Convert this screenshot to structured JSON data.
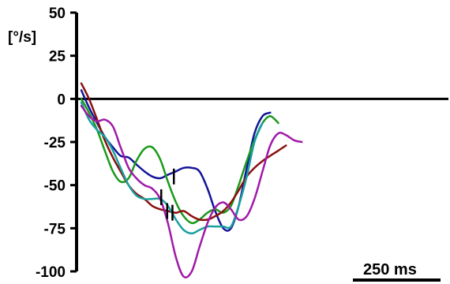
{
  "chart_data": {
    "type": "line",
    "title": "",
    "xlabel": "",
    "ylabel": "[°/s]",
    "ylim": [
      -100,
      50
    ],
    "yticks": [
      50,
      25,
      0,
      -25,
      -50,
      -75,
      -100
    ],
    "ytick_labels": [
      "50",
      "25",
      "0",
      "-25",
      "-50",
      "-75",
      "-100"
    ],
    "scale_bar": {
      "label": "250 ms",
      "duration_ms": 250
    },
    "grid": false,
    "legend": "none",
    "x_unit": "ms",
    "series": [
      {
        "color": "#14149a",
        "x": [
          0,
          22,
          45,
          67,
          90,
          112,
          135,
          157,
          180,
          202,
          225,
          247,
          270,
          292,
          315,
          337,
          360,
          382,
          405,
          427,
          449,
          472,
          494,
          517,
          539
        ],
        "y": [
          5,
          -5,
          -14,
          -22,
          -28,
          -33,
          -34,
          -38,
          -42,
          -45,
          -46,
          -44,
          -42,
          -40,
          -40,
          -42,
          -52,
          -65,
          -75,
          -75,
          -62,
          -40,
          -20,
          -10,
          -8
        ]
      },
      {
        "color": "#1a9a1a",
        "x": [
          0,
          22,
          45,
          67,
          90,
          112,
          135,
          157,
          180,
          202,
          225,
          247,
          270,
          292,
          315,
          337,
          360,
          382,
          405,
          427,
          449,
          472,
          494,
          517,
          539,
          562
        ],
        "y": [
          0,
          -8,
          -18,
          -30,
          -42,
          -48,
          -46,
          -36,
          -29,
          -28,
          -35,
          -48,
          -60,
          -68,
          -72,
          -70,
          -66,
          -64,
          -66,
          -62,
          -50,
          -36,
          -24,
          -14,
          -10,
          -14
        ]
      },
      {
        "color": "#8b1010",
        "x": [
          0,
          22,
          45,
          67,
          90,
          112,
          135,
          157,
          180,
          202,
          225,
          247,
          270,
          292,
          315,
          337,
          360,
          382,
          405,
          427,
          449,
          472,
          494,
          517,
          539,
          562,
          584
        ],
        "y": [
          9,
          0,
          -12,
          -24,
          -34,
          -42,
          -50,
          -55,
          -58,
          -62,
          -64,
          -65,
          -66,
          -65,
          -68,
          -70,
          -70,
          -68,
          -65,
          -60,
          -53,
          -45,
          -40,
          -36,
          -33,
          -30,
          -27
        ]
      },
      {
        "color": "#1aa0a0",
        "x": [
          0,
          22,
          45,
          67,
          90,
          112,
          135,
          157,
          180,
          202,
          225,
          247,
          270,
          292,
          315,
          337,
          360,
          382,
          405,
          427,
          449,
          472,
          494,
          517
        ],
        "y": [
          -2,
          -12,
          -18,
          -22,
          -30,
          -40,
          -50,
          -56,
          -58,
          -58,
          -58,
          -62,
          -70,
          -76,
          -78,
          -76,
          -74,
          -74,
          -74,
          -74,
          -62,
          -45,
          -25,
          -14
        ]
      },
      {
        "color": "#a01aa8",
        "x": [
          0,
          22,
          45,
          67,
          90,
          112,
          135,
          157,
          180,
          202,
          225,
          247,
          270,
          292,
          315,
          337,
          360,
          382,
          405,
          427,
          449,
          472,
          494,
          517,
          539,
          562,
          584,
          607,
          629
        ],
        "y": [
          -4,
          -10,
          -13,
          -12,
          -16,
          -28,
          -40,
          -46,
          -50,
          -52,
          -58,
          -72,
          -92,
          -103,
          -100,
          -86,
          -72,
          -63,
          -60,
          -64,
          -70,
          -68,
          -58,
          -42,
          -27,
          -20,
          -21,
          -24,
          -25
        ]
      }
    ],
    "markers": [
      {
        "color": "#000000",
        "x": 264,
        "y": -45
      },
      {
        "color": "#000000",
        "x": 228,
        "y": -57
      },
      {
        "color": "#000000",
        "x": 245,
        "y": -65
      },
      {
        "color": "#000000",
        "x": 260,
        "y": -66
      }
    ]
  }
}
